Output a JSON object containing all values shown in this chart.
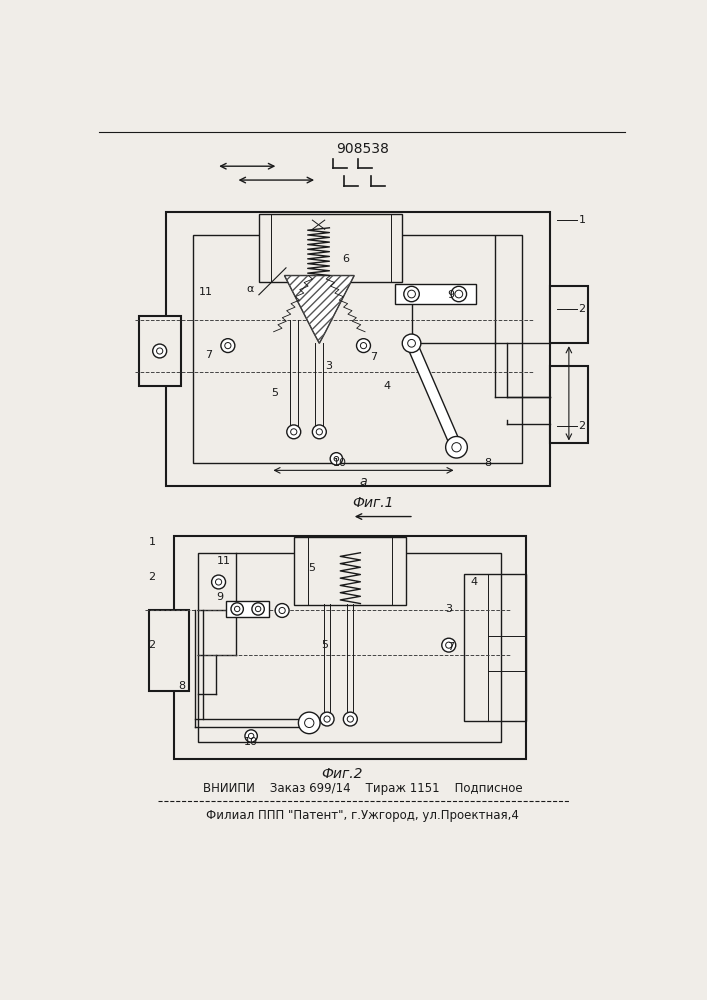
{
  "title_number": "908538",
  "fig1_caption": "Фиг.1",
  "fig2_caption": "Фиг.2",
  "footer_line1": "ВНИИПИ    Заказ 699/14    Тираж 1151    Подписное",
  "footer_line2": "Филиал ППП \"Патент\", г.Ужгород, ул.Проектная,4",
  "bg_color": "#f0ede8",
  "line_color": "#1a1a1a"
}
